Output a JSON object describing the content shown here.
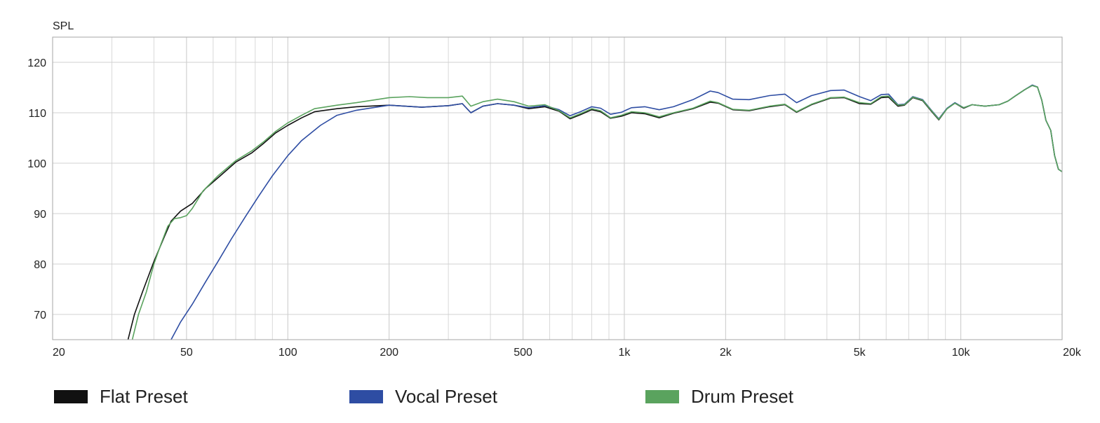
{
  "chart_data": {
    "type": "line",
    "title": "",
    "ylabel": "SPL",
    "xlabel": "",
    "x_scale": "log",
    "xlim": [
      20,
      20000
    ],
    "ylim": [
      65,
      125
    ],
    "grid": true,
    "x_tick_labels": [
      {
        "value": 20,
        "label": "20"
      },
      {
        "value": 50,
        "label": "50"
      },
      {
        "value": 100,
        "label": "100"
      },
      {
        "value": 200,
        "label": "200"
      },
      {
        "value": 500,
        "label": "500"
      },
      {
        "value": 1000,
        "label": "1k"
      },
      {
        "value": 2000,
        "label": "2k"
      },
      {
        "value": 5000,
        "label": "5k"
      },
      {
        "value": 10000,
        "label": "10k"
      },
      {
        "value": 20000,
        "label": "20k"
      }
    ],
    "y_tick_labels": [
      {
        "value": 70,
        "label": "70"
      },
      {
        "value": 80,
        "label": "80"
      },
      {
        "value": 90,
        "label": "90"
      },
      {
        "value": 100,
        "label": "100"
      },
      {
        "value": 110,
        "label": "110"
      },
      {
        "value": 120,
        "label": "120"
      }
    ],
    "legend_position": "bottom",
    "series": [
      {
        "name": "Flat Preset",
        "color": "#111111",
        "points": [
          [
            33.5,
            65
          ],
          [
            35,
            70
          ],
          [
            37,
            74.5
          ],
          [
            40,
            80.5
          ],
          [
            43,
            85.5
          ],
          [
            45,
            88.5
          ],
          [
            48,
            90.5
          ],
          [
            52,
            92
          ],
          [
            57,
            95
          ],
          [
            63,
            97.5
          ],
          [
            70,
            100.2
          ],
          [
            78,
            102
          ],
          [
            85,
            104
          ],
          [
            92,
            106
          ],
          [
            100,
            107.5
          ],
          [
            110,
            109
          ],
          [
            120,
            110.2
          ],
          [
            140,
            110.8
          ],
          [
            160,
            111.2
          ],
          [
            200,
            111.5
          ],
          [
            250,
            111.1
          ],
          [
            300,
            111.4
          ],
          [
            330,
            111.8
          ],
          [
            350,
            110
          ],
          [
            380,
            111.3
          ],
          [
            420,
            111.8
          ],
          [
            470,
            111.5
          ],
          [
            520,
            110.8
          ],
          [
            580,
            111.2
          ],
          [
            640,
            110.3
          ],
          [
            690,
            108.8
          ],
          [
            740,
            109.6
          ],
          [
            800,
            110.6
          ],
          [
            850,
            110.2
          ],
          [
            910,
            108.9
          ],
          [
            980,
            109.3
          ],
          [
            1050,
            110
          ],
          [
            1150,
            109.8
          ],
          [
            1270,
            109
          ],
          [
            1400,
            109.9
          ],
          [
            1600,
            110.8
          ],
          [
            1800,
            112.1
          ],
          [
            1900,
            111.9
          ],
          [
            2100,
            110.6
          ],
          [
            2350,
            110.4
          ],
          [
            2700,
            111.2
          ],
          [
            3000,
            111.6
          ],
          [
            3250,
            110.1
          ],
          [
            3600,
            111.6
          ],
          [
            4100,
            112.9
          ],
          [
            4500,
            113
          ],
          [
            5000,
            111.8
          ],
          [
            5400,
            111.7
          ],
          [
            5800,
            113
          ],
          [
            6100,
            113.1
          ],
          [
            6500,
            111.3
          ],
          [
            6800,
            111.5
          ],
          [
            7200,
            113
          ],
          [
            7700,
            112.4
          ],
          [
            8200,
            110.2
          ],
          [
            8600,
            108.6
          ],
          [
            9100,
            110.8
          ],
          [
            9600,
            111.9
          ],
          [
            10200,
            110.9
          ],
          [
            10800,
            111.6
          ],
          [
            11800,
            111.3
          ],
          [
            13000,
            111.6
          ],
          [
            13800,
            112.3
          ],
          [
            14500,
            113.3
          ],
          [
            15500,
            114.6
          ],
          [
            16300,
            115.4
          ],
          [
            16900,
            115.1
          ],
          [
            17400,
            112.5
          ],
          [
            17900,
            108.5
          ],
          [
            18500,
            106.5
          ],
          [
            19000,
            101.5
          ],
          [
            19500,
            98.8
          ],
          [
            20000,
            98.3
          ]
        ]
      },
      {
        "name": "Vocal Preset",
        "color": "#2e4da3",
        "points": [
          [
            45,
            65
          ],
          [
            48,
            68.5
          ],
          [
            52,
            72
          ],
          [
            57,
            76.5
          ],
          [
            62,
            80.5
          ],
          [
            68,
            85
          ],
          [
            75,
            89.5
          ],
          [
            82,
            93.5
          ],
          [
            90,
            97.5
          ],
          [
            100,
            101.5
          ],
          [
            110,
            104.5
          ],
          [
            125,
            107.5
          ],
          [
            140,
            109.5
          ],
          [
            160,
            110.5
          ],
          [
            200,
            111.5
          ],
          [
            250,
            111.1
          ],
          [
            300,
            111.4
          ],
          [
            330,
            111.8
          ],
          [
            350,
            110
          ],
          [
            380,
            111.3
          ],
          [
            420,
            111.8
          ],
          [
            470,
            111.5
          ],
          [
            520,
            111
          ],
          [
            580,
            111.4
          ],
          [
            640,
            110.6
          ],
          [
            690,
            109.4
          ],
          [
            740,
            110.2
          ],
          [
            800,
            111.2
          ],
          [
            850,
            110.9
          ],
          [
            910,
            109.7
          ],
          [
            980,
            110.1
          ],
          [
            1050,
            111
          ],
          [
            1150,
            111.2
          ],
          [
            1270,
            110.6
          ],
          [
            1400,
            111.2
          ],
          [
            1600,
            112.6
          ],
          [
            1800,
            114.3
          ],
          [
            1900,
            114
          ],
          [
            2100,
            112.7
          ],
          [
            2350,
            112.6
          ],
          [
            2700,
            113.4
          ],
          [
            3000,
            113.7
          ],
          [
            3250,
            112
          ],
          [
            3600,
            113.4
          ],
          [
            4100,
            114.4
          ],
          [
            4500,
            114.5
          ],
          [
            5000,
            113.2
          ],
          [
            5400,
            112.4
          ],
          [
            5800,
            113.6
          ],
          [
            6100,
            113.7
          ],
          [
            6500,
            111.6
          ],
          [
            6800,
            111.7
          ],
          [
            7200,
            113.2
          ],
          [
            7700,
            112.6
          ],
          [
            8200,
            110.4
          ],
          [
            8600,
            108.8
          ],
          [
            9100,
            110.9
          ],
          [
            9600,
            112
          ],
          [
            10200,
            111
          ],
          [
            10800,
            111.6
          ],
          [
            11800,
            111.3
          ],
          [
            13000,
            111.6
          ],
          [
            13800,
            112.3
          ],
          [
            14500,
            113.3
          ],
          [
            15500,
            114.6
          ],
          [
            16300,
            115.5
          ],
          [
            16900,
            115.1
          ],
          [
            17400,
            112.5
          ],
          [
            17900,
            108.5
          ],
          [
            18500,
            106.5
          ],
          [
            19000,
            101.5
          ],
          [
            19500,
            98.8
          ],
          [
            20000,
            98.3
          ]
        ]
      },
      {
        "name": "Drum Preset",
        "color": "#5aa35e",
        "points": [
          [
            34.5,
            65
          ],
          [
            36,
            70
          ],
          [
            38,
            74.5
          ],
          [
            40,
            80
          ],
          [
            42,
            84
          ],
          [
            44,
            87.5
          ],
          [
            46,
            89
          ],
          [
            48,
            89.2
          ],
          [
            50,
            89.6
          ],
          [
            52,
            91
          ],
          [
            56,
            94.5
          ],
          [
            62,
            97.5
          ],
          [
            70,
            100.5
          ],
          [
            78,
            102.4
          ],
          [
            85,
            104.3
          ],
          [
            92,
            106.3
          ],
          [
            100,
            108
          ],
          [
            110,
            109.5
          ],
          [
            120,
            110.8
          ],
          [
            140,
            111.5
          ],
          [
            160,
            112
          ],
          [
            200,
            113
          ],
          [
            230,
            113.2
          ],
          [
            260,
            113
          ],
          [
            300,
            113
          ],
          [
            330,
            113.3
          ],
          [
            350,
            111.3
          ],
          [
            380,
            112.2
          ],
          [
            420,
            112.7
          ],
          [
            470,
            112.2
          ],
          [
            520,
            111.3
          ],
          [
            580,
            111.6
          ],
          [
            640,
            110.4
          ],
          [
            690,
            109
          ],
          [
            740,
            109.8
          ],
          [
            800,
            110.8
          ],
          [
            850,
            110.4
          ],
          [
            910,
            109
          ],
          [
            980,
            109.5
          ],
          [
            1050,
            110.2
          ],
          [
            1150,
            110
          ],
          [
            1270,
            109.2
          ],
          [
            1400,
            110
          ],
          [
            1600,
            110.9
          ],
          [
            1800,
            112.3
          ],
          [
            1900,
            112
          ],
          [
            2100,
            110.7
          ],
          [
            2350,
            110.5
          ],
          [
            2700,
            111.3
          ],
          [
            3000,
            111.7
          ],
          [
            3250,
            110.2
          ],
          [
            3600,
            111.7
          ],
          [
            4100,
            113
          ],
          [
            4500,
            113.1
          ],
          [
            5000,
            112
          ],
          [
            5400,
            111.8
          ],
          [
            5800,
            113.2
          ],
          [
            6100,
            113.3
          ],
          [
            6500,
            111.5
          ],
          [
            6800,
            111.6
          ],
          [
            7200,
            113.1
          ],
          [
            7700,
            112.5
          ],
          [
            8200,
            110.3
          ],
          [
            8600,
            108.7
          ],
          [
            9100,
            110.8
          ],
          [
            9600,
            111.9
          ],
          [
            10200,
            111
          ],
          [
            10800,
            111.6
          ],
          [
            11800,
            111.3
          ],
          [
            13000,
            111.6
          ],
          [
            13800,
            112.3
          ],
          [
            14500,
            113.3
          ],
          [
            15500,
            114.6
          ],
          [
            16300,
            115.4
          ],
          [
            16900,
            115.1
          ],
          [
            17400,
            112.5
          ],
          [
            17900,
            108.5
          ],
          [
            18500,
            106.5
          ],
          [
            19000,
            101.5
          ],
          [
            19500,
            98.8
          ],
          [
            20000,
            98.3
          ]
        ]
      }
    ]
  }
}
